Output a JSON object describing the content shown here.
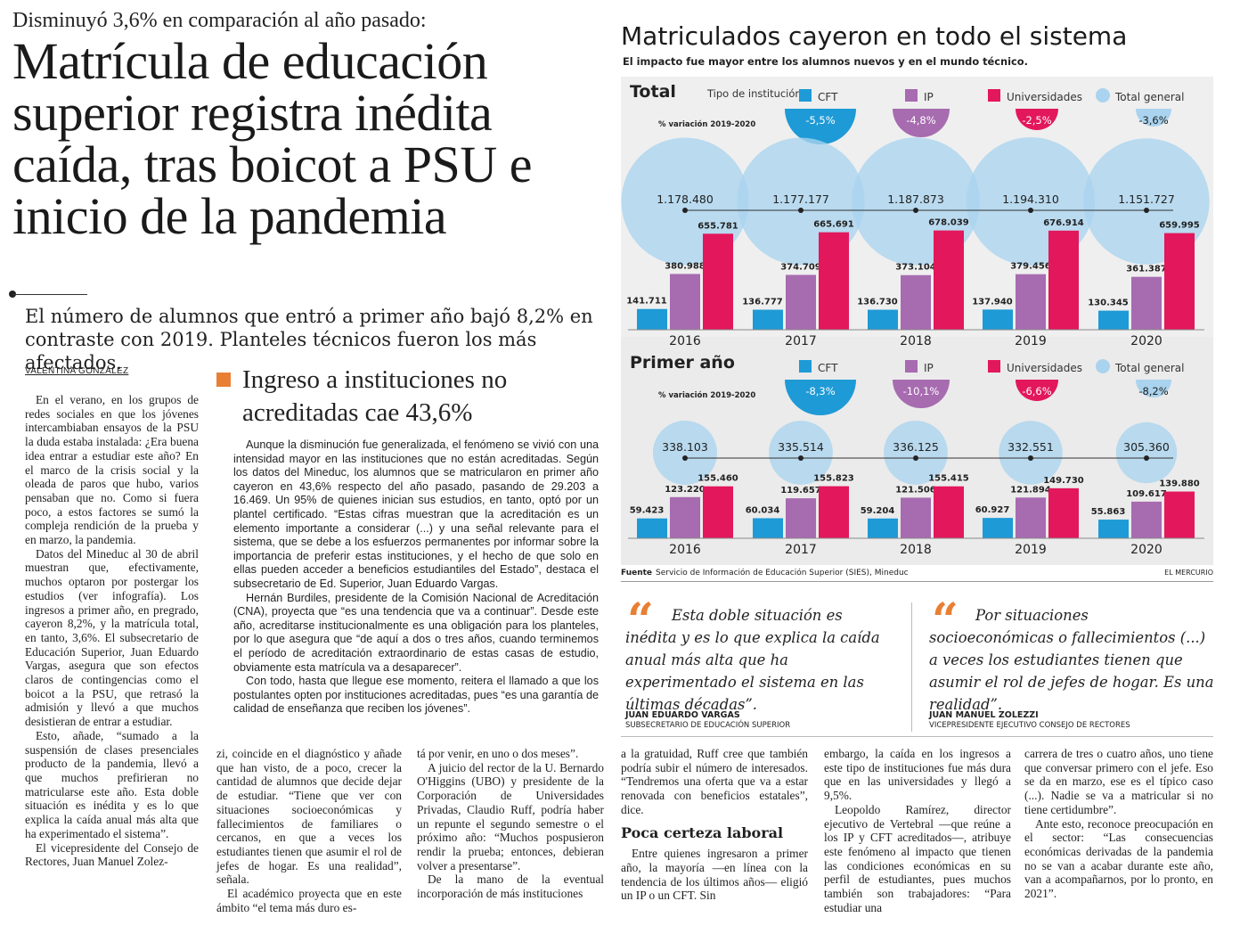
{
  "article": {
    "kicker": "Disminuyó 3,6% en comparación al año pasado:",
    "headline": "Matrícula de educación superior registra inédita caída, tras boicot a PSU e inicio de la pandemia",
    "lead": "El número de alumnos que entró a primer año bajó 8,2% en contraste con 2019. Planteles técnicos fueron los más afectados.",
    "byline": "VALENTINA GONZÁLEZ",
    "col1": [
      "En el verano, en los grupos de redes sociales en que los jóvenes intercambiaban ensayos de la PSU la duda estaba instalada: ¿Era buena idea entrar a estudiar este año? En el marco de la crisis social y la oleada de paros que hubo, varios pensaban que no. Como si fuera poco, a estos factores se sumó la compleja rendición de la prueba y en marzo, la pandemia.",
      "Datos del Mineduc al 30 de abril muestran que, efectivamente, muchos optaron por postergar los estudios (ver infografía). Los ingresos a primer año, en pregrado, cayeron 8,2%, y la matrícula total, en tanto, 3,6%. El subsecretario de Educación Superior, Juan Eduardo Vargas, asegura que son efectos claros de contingencias como el boicot a la PSU, que retrasó la admisión y llevó a que muchos desistieran de entrar a estudiar.",
      "Esto, añade, “sumado a la suspensión de clases presenciales producto de la pandemia, llevó a que muchos prefirieran no matricularse este año. Esta doble situación es inédita y es lo que explica la caída anual más alta que ha experimentado el sistema”.",
      "El vicepresidente del Consejo de Rectores, Juan Manuel Zolez-"
    ],
    "col2": [
      "zi, coincide en el diagnóstico y añade que han visto, de a poco, crecer la cantidad de alumnos que decide dejar de estudiar. “Tiene que ver con situaciones socioeconómicas y fallecimientos de familiares o cercanos, en que a veces los estudiantes tienen que asumir el rol de jefes de hogar. Es una realidad”, señala.",
      "El académico proyecta que en este ámbito “el tema más duro es-"
    ],
    "col3": [
      "tá por venir, en uno o dos meses”.",
      "A juicio del rector de la U. Bernardo O'Higgins (UBO) y presidente de la Corporación de Universidades Privadas, Claudio Ruff, podría haber un repunte el segundo semestre o el próximo año: “Muchos pospusieron rendir la prueba; entonces, debieran volver a presentarse”.",
      "De la mano de la eventual incorporación de más instituciones"
    ],
    "col4a": "a la gratuidad, Ruff cree que también podría subir el número de interesados. “Tendremos una oferta que va a estar renovada con beneficios estatales”, dice.",
    "col4_subhead": "Poca certeza laboral",
    "col4b": "Entre quienes ingresaron a primer año, la mayoría —en línea con la tendencia de los últimos años— eligió un IP o un CFT. Sin",
    "col5": [
      "embargo, la caída en los ingresos a este tipo de instituciones fue más dura que en las universidades y llegó a 9,5%.",
      "Leopoldo Ramírez, director ejecutivo de Vertebral —que reúne a los IP y CFT acreditados—, atribuye este fenómeno al impacto que tienen las condiciones económicas en su perfil de estudiantes, pues muchos también son trabajadores: “Para estudiar una"
    ],
    "col6": [
      "carrera de tres o cuatro años, uno tiene que conversar primero con el jefe. Eso se da en marzo, ese es el típico caso (...). Nadie se va a matricular si no tiene certidumbre”.",
      "Ante esto, reconoce preocupación en el sector: “Las consecuencias económicas derivadas de la pandemia no se van a acabar durante este año, van a acompañarnos, por lo pronto, en 2021”."
    ]
  },
  "box": {
    "title": "Ingreso a instituciones no acreditadas cae 43,6%",
    "paragraphs": [
      "Aunque la disminución fue generalizada, el fenómeno se vivió con una intensidad mayor en las instituciones que no están acreditadas. Según los datos del Mineduc, los alumnos que se matricularon en primer año cayeron en 43,6% respecto del año pasado, pasando de 29.203 a 16.469. Un 95% de quienes inician sus estudios, en tanto, optó por un plantel certificado. “Estas cifras muestran que la acreditación es un elemento importante a considerar (...) y una señal relevante para el sistema, que se debe a los esfuerzos permanentes por informar sobre la importancia de preferir estas instituciones, y el hecho de que solo en ellas pueden acceder a beneficios estudiantiles del Estado”, destaca el subsecretario de Ed. Superior, Juan Eduardo Vargas.",
      "Hernán Burdiles, presidente de la Comisión Nacional de Acreditación (CNA), proyecta que “es una tendencia que va a continuar”. Desde este año, acreditarse institucionalmente es una obligación para los planteles, por lo que asegura que “de aquí a dos o tres años, cuando terminemos el período de acreditación extraordinario de estas casas de estudio, obviamente esta matrícula va a desaparecer”.",
      "Con todo, hasta que llegue ese momento, reitera el llamado a que los postulantes opten por instituciones acreditadas, pues “es una garantía de calidad de enseñanza que reciben los jóvenes”."
    ]
  },
  "quotes": [
    {
      "mark": "“",
      "text": "Esta doble situación es inédita y es lo que explica la caída anual más alta que ha experimentado el sistema en las últimas décadas”.",
      "name": "JUAN EDUARDO VARGAS",
      "role": "SUBSECRETARIO DE EDUCACIÓN SUPERIOR"
    },
    {
      "mark": "“",
      "text": "Por situaciones socioeconómicas o fallecimientos (...) a veces los estudiantes tienen que asumir el rol de jefes de hogar. Es una realidad”.",
      "name": "JUAN MANUEL ZOLEZZI",
      "role": "VICEPRESIDENTE EJECUTIVO CONSEJO DE RECTORES"
    }
  ],
  "infographic": {
    "title": "Matriculados cayeron en todo el sistema",
    "subtitle": "El impacto fue mayor entre los alumnos nuevos y en el mundo técnico.",
    "source_label": "Fuente",
    "source": "Servicio de Información de Educación Superior (SIES), Mineduc",
    "brand": "EL MERCURIO"
  },
  "chart_data": [
    {
      "type": "bar",
      "title": "Total",
      "legend_title": "Tipo de institución",
      "variation_label": "% variación 2019-2020",
      "categories": [
        "2016",
        "2017",
        "2018",
        "2019",
        "2020"
      ],
      "series": [
        {
          "name": "CFT",
          "color": "#1e9ad6",
          "values": [
            141711,
            136777,
            136730,
            137940,
            130345
          ],
          "labels": [
            "141.711",
            "136.777",
            "136.730",
            "137.940",
            "130.345"
          ],
          "variation": "-5,5%"
        },
        {
          "name": "IP",
          "color": "#a76bb0",
          "values": [
            380988,
            374709,
            373104,
            379456,
            361387
          ],
          "labels": [
            "380.988",
            "374.709",
            "373.104",
            "379.456",
            "361.387"
          ],
          "variation": "-4,8%"
        },
        {
          "name": "Universidades",
          "color": "#e3175b",
          "values": [
            655781,
            665691,
            678039,
            676914,
            659995
          ],
          "labels": [
            "655.781",
            "665.691",
            "678.039",
            "676.914",
            "659.995"
          ],
          "variation": "-2,5%"
        }
      ],
      "total": {
        "name": "Total general",
        "color": "#a9d3ee",
        "values": [
          1178480,
          1177177,
          1187873,
          1194310,
          1151727
        ],
        "labels": [
          "1.178.480",
          "1.177.177",
          "1.187.873",
          "1.194.310",
          "1.151.727"
        ],
        "variation": "-3,6%"
      }
    },
    {
      "type": "bar",
      "title": "Primer año",
      "legend_title": "",
      "variation_label": "% variación 2019-2020",
      "categories": [
        "2016",
        "2017",
        "2018",
        "2019",
        "2020"
      ],
      "series": [
        {
          "name": "CFT",
          "color": "#1e9ad6",
          "values": [
            59423,
            60034,
            59204,
            60927,
            55863
          ],
          "labels": [
            "59.423",
            "60.034",
            "59.204",
            "60.927",
            "55.863"
          ],
          "variation": "-8,3%"
        },
        {
          "name": "IP",
          "color": "#a76bb0",
          "values": [
            123220,
            119657,
            121506,
            121894,
            109617
          ],
          "labels": [
            "123.220",
            "119.657",
            "121.506",
            "121.894",
            "109.617"
          ],
          "variation": "-10,1%"
        },
        {
          "name": "Universidades",
          "color": "#e3175b",
          "values": [
            155460,
            155823,
            155415,
            149730,
            139880
          ],
          "labels": [
            "155.460",
            "155.823",
            "155.415",
            "149.730",
            "139.880"
          ],
          "variation": "-6,6%"
        }
      ],
      "total": {
        "name": "Total general",
        "color": "#a9d3ee",
        "values": [
          338103,
          335514,
          336125,
          332551,
          305360
        ],
        "labels": [
          "338.103",
          "335.514",
          "336.125",
          "332.551",
          "305.360"
        ],
        "variation": "-8,2%"
      }
    }
  ]
}
